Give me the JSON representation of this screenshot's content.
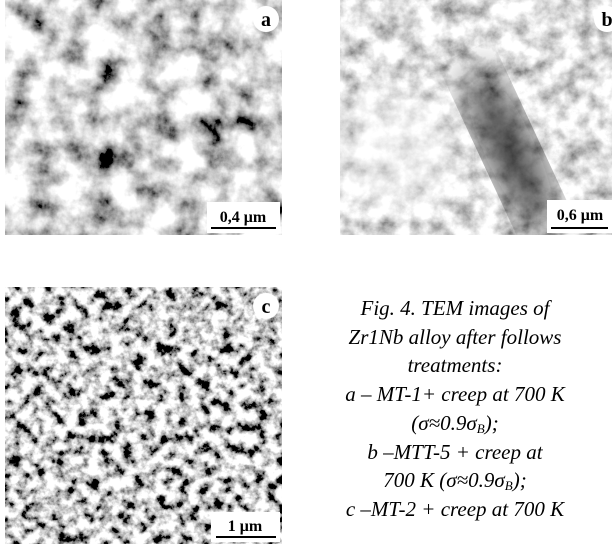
{
  "panels": [
    {
      "label": "a",
      "scale": "0,4 μm"
    },
    {
      "label": "b",
      "scale": "0,6 μm"
    },
    {
      "label": "c",
      "scale": "1 μm"
    }
  ],
  "caption": {
    "lines": [
      [
        "Fig. 4. TEM images of"
      ],
      [
        "Zr1Nb alloy after follows"
      ],
      [
        "treatments:"
      ],
      [
        "a – MT-1+ creep at 700 K"
      ],
      [
        "(σ≈0.9σ",
        "B",
        ");"
      ],
      [
        "b –MTT-5 + creep at"
      ],
      [
        "700 K (σ≈0.9σ",
        "B",
        ");"
      ],
      [
        "c –MT-2 + creep at 700 K"
      ]
    ]
  }
}
